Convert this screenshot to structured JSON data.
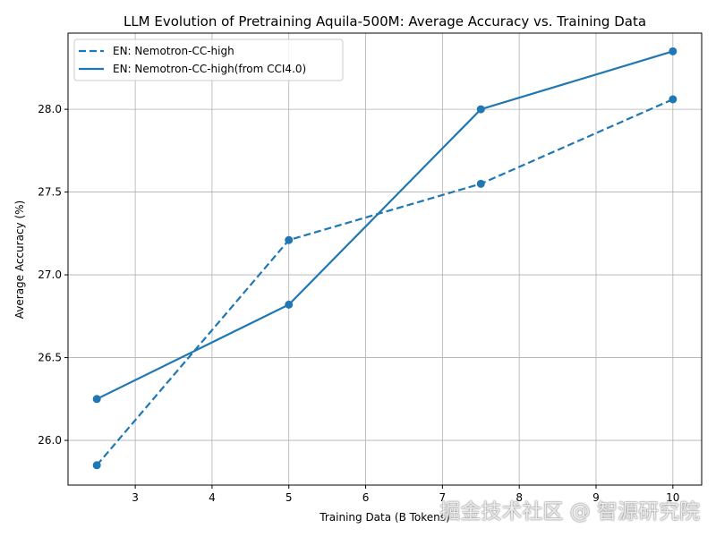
{
  "chart_data": {
    "type": "line",
    "title": "LLM Evolution of Pretraining Aquila-500M: Average Accuracy vs. Training Data",
    "xlabel": "Training Data (B Tokens)",
    "ylabel": "Average Accuracy (%)",
    "xlim": [
      2.125,
      10.375
    ],
    "ylim": [
      25.73,
      28.46
    ],
    "xticks": [
      3,
      4,
      5,
      6,
      7,
      8,
      9,
      10
    ],
    "yticks": [
      26.0,
      26.5,
      27.0,
      27.5,
      28.0
    ],
    "grid": true,
    "legend_position": "top-left",
    "x": [
      2.5,
      5,
      7.5,
      10
    ],
    "series": [
      {
        "name": "EN: Nemotron-CC-high",
        "style": "dashed",
        "color": "#1f77b4",
        "values": [
          25.85,
          27.21,
          27.55,
          28.06
        ]
      },
      {
        "name": "EN: Nemotron-CC-high(from CCI4.0)",
        "style": "solid",
        "color": "#1f77b4",
        "values": [
          26.25,
          26.82,
          28.0,
          28.35
        ]
      }
    ]
  },
  "watermark": "掘金技术社区 @ 智源研究院"
}
